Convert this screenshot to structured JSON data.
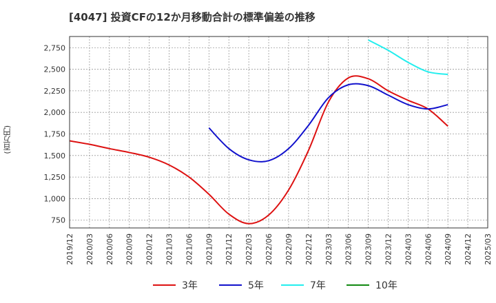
{
  "title": "[4047]  投資CFの12か月移動合計の標準偏差の推移",
  "ylabel": "(百万円)",
  "chart_data": {
    "type": "line",
    "title": "[4047]  投資CFの12か月移動合計の標準偏差の推移",
    "xlabel": "",
    "ylabel": "(百万円)",
    "x": [
      "2019/12",
      "2020/03",
      "2020/06",
      "2020/09",
      "2020/12",
      "2021/03",
      "2021/06",
      "2021/09",
      "2021/12",
      "2022/03",
      "2022/06",
      "2022/09",
      "2022/12",
      "2023/03",
      "2023/06",
      "2023/09",
      "2023/12",
      "2024/03",
      "2024/06",
      "2024/09",
      "2024/12",
      "2025/03"
    ],
    "ylim": [
      660,
      2880
    ],
    "yticks": [
      750,
      1000,
      1250,
      1500,
      1750,
      2000,
      2250,
      2500,
      2750
    ],
    "ytick_labels": [
      "750",
      "1,000",
      "1,250",
      "1,500",
      "1,750",
      "2,000",
      "2,250",
      "2,500",
      "2,750"
    ],
    "grid": true,
    "legend": "bottom",
    "series": [
      {
        "name": "3年",
        "color": "#dd1111",
        "points": [
          [
            "2019/12",
            1670
          ],
          [
            "2020/03",
            1630
          ],
          [
            "2020/06",
            1580
          ],
          [
            "2020/09",
            1535
          ],
          [
            "2020/12",
            1480
          ],
          [
            "2021/03",
            1390
          ],
          [
            "2021/06",
            1250
          ],
          [
            "2021/09",
            1050
          ],
          [
            "2021/12",
            820
          ],
          [
            "2022/03",
            710
          ],
          [
            "2022/06",
            810
          ],
          [
            "2022/09",
            1100
          ],
          [
            "2022/12",
            1560
          ],
          [
            "2023/03",
            2120
          ],
          [
            "2023/06",
            2400
          ],
          [
            "2023/09",
            2390
          ],
          [
            "2023/12",
            2250
          ],
          [
            "2024/03",
            2140
          ],
          [
            "2024/06",
            2040
          ],
          [
            "2024/09",
            1840
          ]
        ]
      },
      {
        "name": "5年",
        "color": "#1111cc",
        "points": [
          [
            "2021/09",
            1820
          ],
          [
            "2021/12",
            1580
          ],
          [
            "2022/03",
            1450
          ],
          [
            "2022/06",
            1440
          ],
          [
            "2022/09",
            1580
          ],
          [
            "2022/12",
            1850
          ],
          [
            "2023/03",
            2170
          ],
          [
            "2023/06",
            2320
          ],
          [
            "2023/09",
            2310
          ],
          [
            "2023/12",
            2200
          ],
          [
            "2024/03",
            2090
          ],
          [
            "2024/06",
            2040
          ],
          [
            "2024/09",
            2090
          ]
        ]
      },
      {
        "name": "7年",
        "color": "#22eeee",
        "points": [
          [
            "2023/09",
            2840
          ],
          [
            "2023/12",
            2720
          ],
          [
            "2024/03",
            2580
          ],
          [
            "2024/06",
            2470
          ],
          [
            "2024/09",
            2440
          ]
        ]
      },
      {
        "name": "10年",
        "color": "#118811",
        "points": []
      }
    ]
  }
}
